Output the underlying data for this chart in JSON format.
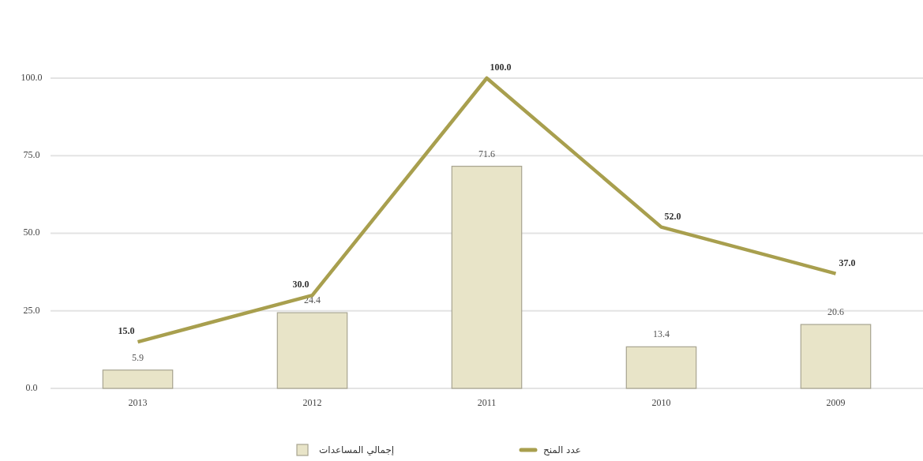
{
  "chart_data": {
    "type": "bar",
    "categories": [
      "2013",
      "2012",
      "2011",
      "2010",
      "2009"
    ],
    "series": [
      {
        "name": "إجمالي المساعدات",
        "color": "#e8e4c8",
        "values": [
          5.9,
          24.4,
          71.6,
          13.4,
          20.6
        ],
        "value_labels": [
          "5.9",
          "24.4",
          "71.6",
          "13.4",
          "20.6"
        ]
      },
      {
        "name": "عدد المنح",
        "type": "line",
        "color": "#a89f4e",
        "values": [
          15,
          30,
          100,
          52,
          37
        ],
        "value_labels": [
          "15.0",
          "30.0",
          "100.0",
          "52.0",
          "37.0"
        ]
      }
    ],
    "ylim": [
      0,
      100
    ],
    "yticks": [
      {
        "value": 0,
        "label": "0.0"
      },
      {
        "value": 25,
        "label": "25.0"
      },
      {
        "value": 50,
        "label": "50.0"
      },
      {
        "value": 75,
        "label": "75.0"
      },
      {
        "value": 100,
        "label": "100.0"
      }
    ],
    "grid": "y",
    "legend": "bottom"
  }
}
